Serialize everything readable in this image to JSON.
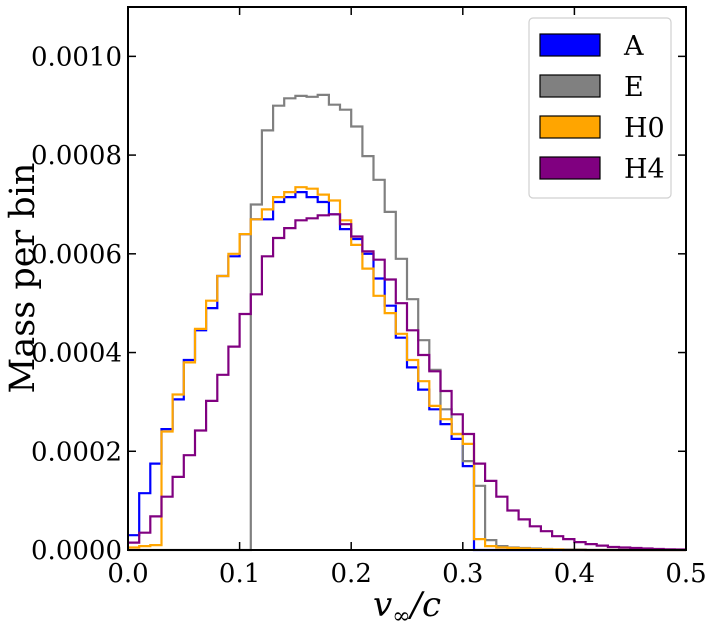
{
  "chart_data": {
    "type": "histogram",
    "title": "",
    "xlabel": "v_∞/c",
    "ylabel": "Mass per bin",
    "xlim": [
      0.0,
      0.5
    ],
    "ylim": [
      0.0,
      0.0011
    ],
    "grid": false,
    "legend_position": "top-right",
    "bin_width": 0.01,
    "bin_start": 0.0,
    "x_ticks": [
      0.0,
      0.1,
      0.2,
      0.3,
      0.4,
      0.5
    ],
    "x_tick_labels": [
      "0.0",
      "0.1",
      "0.2",
      "0.3",
      "0.4",
      "0.5"
    ],
    "y_ticks": [
      0.0,
      0.0002,
      0.0004,
      0.0006,
      0.0008,
      0.001
    ],
    "y_tick_labels": [
      "0.0000",
      "0.0002",
      "0.0004",
      "0.0006",
      "0.0008",
      "0.0010"
    ],
    "series": [
      {
        "name": "A",
        "color": "#0000ff",
        "values": [
          3e-05,
          0.000115,
          0.000175,
          0.000245,
          0.000305,
          0.000385,
          0.000445,
          0.00049,
          0.000555,
          0.000595,
          0.00064,
          0.00067,
          0.00067,
          0.000705,
          0.000715,
          0.000725,
          0.000715,
          0.000705,
          0.00068,
          0.00065,
          0.00063,
          0.0006,
          0.00055,
          0.000495,
          0.00043,
          0.00037,
          0.000325,
          0.000285,
          0.000255,
          0.000225,
          0.00017,
          0,
          0,
          0,
          0,
          0,
          0,
          0,
          0,
          0,
          0,
          0,
          0,
          0,
          0,
          0,
          0,
          0,
          0,
          0
        ]
      },
      {
        "name": "E",
        "color": "#808080",
        "values": [
          0,
          0,
          0,
          0,
          0,
          0,
          0,
          0,
          0,
          0,
          0,
          0.0007,
          0.00085,
          0.0009,
          0.000915,
          0.00092,
          0.000918,
          0.000922,
          0.000902,
          0.000892,
          0.000858,
          0.000798,
          0.00075,
          0.000685,
          0.00059,
          0.000508,
          0.000425,
          0.000365,
          0.000285,
          0.000235,
          0.00018,
          0.00013,
          2e-05,
          8e-06,
          5e-06,
          4e-06,
          3e-06,
          2e-06,
          1.5e-06,
          1e-06,
          1e-06,
          0,
          0,
          0,
          0,
          0,
          0,
          0,
          0,
          0
        ]
      },
      {
        "name": "H0",
        "color": "#ffa500",
        "values": [
          5e-06,
          8e-06,
          1e-05,
          0.00024,
          0.000315,
          0.00038,
          0.000448,
          0.000505,
          0.000555,
          0.0006,
          0.00064,
          0.00067,
          0.00069,
          0.000715,
          0.000725,
          0.000735,
          0.000732,
          0.00072,
          0.000708,
          0.000668,
          0.000618,
          0.00057,
          0.000515,
          0.00048,
          0.000438,
          0.000385,
          0.000342,
          0.000292,
          0.000265,
          0.000235,
          0.000215,
          2.2e-05,
          8e-06,
          5e-06,
          4e-06,
          3e-06,
          2e-06,
          1.5e-06,
          1e-06,
          0,
          0,
          0,
          0,
          0,
          0,
          0,
          0,
          0,
          0,
          0
        ]
      },
      {
        "name": "H4",
        "color": "#800080",
        "values": [
          1.5e-05,
          3.5e-05,
          6.8e-05,
          0.000108,
          0.000148,
          0.000192,
          0.000242,
          0.000302,
          0.000355,
          0.000412,
          0.000478,
          0.000518,
          0.000595,
          0.000632,
          0.000652,
          0.000668,
          0.000672,
          0.000678,
          0.00068,
          0.00066,
          0.000635,
          0.000605,
          0.000588,
          0.000548,
          0.0005,
          0.000445,
          0.000395,
          0.000362,
          0.000322,
          0.000275,
          0.000235,
          0.000175,
          0.00014,
          0.000108,
          8e-05,
          6.2e-05,
          4.8e-05,
          3.8e-05,
          2.8e-05,
          2.2e-05,
          1.6e-05,
          1.2e-05,
          9e-06,
          6e-06,
          5e-06,
          4e-06,
          3e-06,
          2e-06,
          1.5e-06,
          1e-06
        ]
      }
    ]
  }
}
